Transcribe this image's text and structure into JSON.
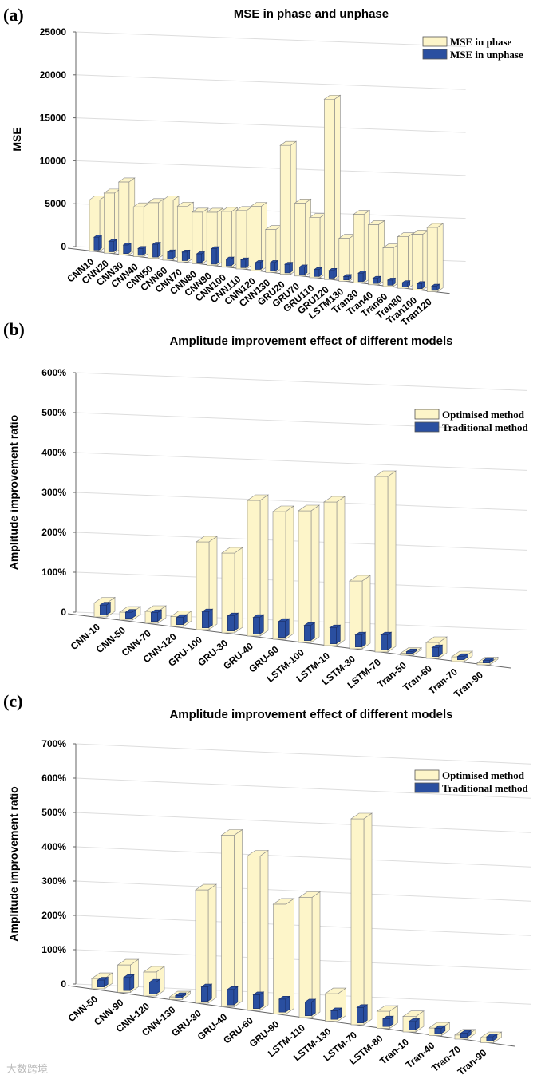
{
  "watermark": "大数跨境",
  "chart_data": [
    {
      "panel": "(a)",
      "type": "bar",
      "title": "MSE in phase and unphase",
      "xlabel": "",
      "ylabel": "MSE",
      "ylim": [
        0,
        25000
      ],
      "yticks": [
        "0",
        "5000",
        "10000",
        "15000",
        "20000",
        "25000"
      ],
      "ytick_values": [
        0,
        5000,
        10000,
        15000,
        20000,
        25000
      ],
      "categories": [
        "CNN10",
        "CNN20",
        "CNN30",
        "CNN40",
        "CNN50",
        "CNN60",
        "CNN70",
        "CNN80",
        "CNN90",
        "CNN100",
        "CNN110",
        "CNN120",
        "CNN130",
        "GRU20",
        "GRU70",
        "GRU110",
        "GRU120",
        "LSTM130",
        "Tran30",
        "Tran40",
        "Tran60",
        "Tran80",
        "Tran100",
        "Tran120"
      ],
      "series": [
        {
          "name": "MSE in phase",
          "color": "#fdf5c9",
          "values": [
            6000,
            7000,
            8500,
            5800,
            6500,
            7000,
            6500,
            6000,
            6200,
            6500,
            6800,
            7500,
            5000,
            15000,
            8500,
            7000,
            21000,
            5000,
            8000,
            7000,
            4500,
            6000,
            6500,
            7500
          ]
        },
        {
          "name": "MSE in unphase",
          "color": "#2a4fa0",
          "values": [
            1500,
            1200,
            1000,
            800,
            1500,
            800,
            1000,
            1000,
            1800,
            800,
            900,
            800,
            1000,
            1000,
            900,
            800,
            900,
            400,
            1000,
            600,
            600,
            500,
            600,
            500
          ]
        }
      ],
      "legend": "top-right",
      "grid": true
    },
    {
      "panel": "(b)",
      "type": "bar",
      "title": "Amplitude improvement effect of different models",
      "xlabel": "",
      "ylabel": "Amplitude improvement ratio",
      "ylim": [
        0,
        600
      ],
      "yticks": [
        "0",
        "100%",
        "200%",
        "300%",
        "400%",
        "500%",
        "600%"
      ],
      "ytick_values": [
        0,
        100,
        200,
        300,
        400,
        500,
        600
      ],
      "categories": [
        "CNN-10",
        "CNN-50",
        "CNN-70",
        "CNN-120",
        "GRU-100",
        "GRU-30",
        "GRU-40",
        "GRU-60",
        "LSTM-100",
        "LSTM-10",
        "LSTM-30",
        "LSTM-70",
        "Tran-50",
        "Tran-60",
        "Tran-70",
        "Tran-90"
      ],
      "series": [
        {
          "name": "Optimised method",
          "color": "#fdf5c9",
          "values": [
            35,
            20,
            30,
            25,
            220,
            200,
            340,
            320,
            330,
            360,
            170,
            440,
            5,
            40,
            12,
            5
          ]
        },
        {
          "name": "Traditional method",
          "color": "#2a4fa0",
          "values": [
            25,
            15,
            22,
            18,
            40,
            38,
            42,
            40,
            38,
            40,
            30,
            38,
            4,
            22,
            8,
            6
          ]
        }
      ],
      "legend": "top-right",
      "grid": true
    },
    {
      "panel": "(c)",
      "type": "bar",
      "title": "Amplitude improvement effect of different models",
      "xlabel": "",
      "ylabel": "Amplitude improvement ratio",
      "ylim": [
        0,
        700
      ],
      "yticks": [
        "0",
        "100%",
        "200%",
        "300%",
        "400%",
        "500%",
        "600%",
        "700%"
      ],
      "ytick_values": [
        0,
        100,
        200,
        300,
        400,
        500,
        600,
        700
      ],
      "categories": [
        "CNN-50",
        "CNN-90",
        "CNN-120",
        "CNN-130",
        "GRU-30",
        "GRU-40",
        "GRU-60",
        "GRU-90",
        "LSTM-110",
        "LSTM-130",
        "LSTM-70",
        "LSTM-80",
        "Tran-10",
        "Tran-40",
        "Tran-70",
        "Tran-90"
      ],
      "series": [
        {
          "name": "Optimised method",
          "color": "#fdf5c9",
          "values": [
            30,
            80,
            70,
            8,
            330,
            500,
            450,
            320,
            350,
            80,
            600,
            50,
            45,
            22,
            12,
            15
          ]
        },
        {
          "name": "Traditional method",
          "color": "#2a4fa0",
          "values": [
            20,
            38,
            35,
            6,
            42,
            45,
            40,
            38,
            40,
            25,
            45,
            22,
            25,
            15,
            12,
            12
          ]
        }
      ],
      "legend": "top-right",
      "grid": true
    }
  ]
}
